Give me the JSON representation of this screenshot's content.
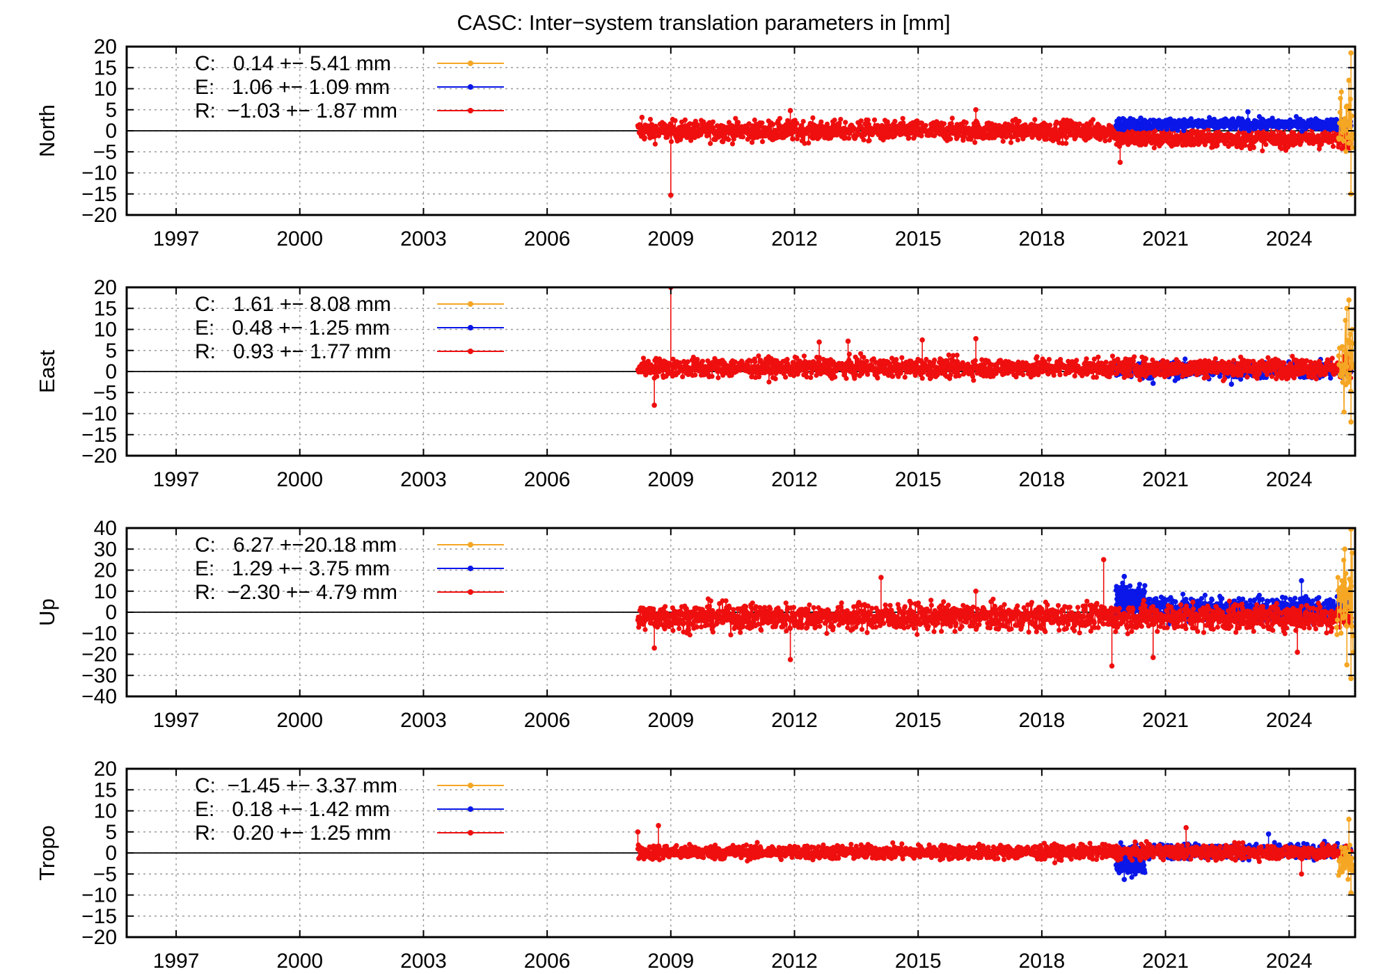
{
  "title": "CASC: Inter−system translation parameters in [mm]",
  "colors": {
    "C": "#f5a623",
    "E": "#0a17e8",
    "R": "#ef0f0f"
  },
  "chart_data": [
    {
      "type": "scatter",
      "panel": "north",
      "ylabel": "North",
      "xlim": [
        1995.8,
        2025.6
      ],
      "ylim": [
        -20,
        20
      ],
      "yticks": [
        "20",
        "15",
        "10",
        "5",
        "0",
        "−5",
        "−10",
        "−15",
        "−20"
      ],
      "xticks": [
        "1997",
        "2000",
        "2003",
        "2006",
        "2009",
        "2012",
        "2015",
        "2018",
        "2021",
        "2024"
      ],
      "legend_position": "top-left",
      "legend": [
        {
          "sys": "C",
          "text": "C:   0.14 +− 5.41 mm"
        },
        {
          "sys": "E",
          "text": "E:   1.06 +− 1.09 mm"
        },
        {
          "sys": "R",
          "text": "R:  −1.03 +− 1.87 mm"
        }
      ],
      "series": [
        {
          "sys": "R",
          "name": "R",
          "segments": [
            {
              "x": [
                2008.2,
                2019.8
              ],
              "mean": 0.0,
              "spread": 1.7
            },
            {
              "x": [
                2019.8,
                2025.5
              ],
              "mean": -1.8,
              "spread": 1.6
            }
          ],
          "spikes": [
            [
              2009.0,
              -15.3
            ],
            [
              2011.9,
              4.8
            ],
            [
              2016.4,
              5.0
            ],
            [
              2019.9,
              -7.5
            ],
            [
              2008.3,
              3.2
            ]
          ]
        },
        {
          "sys": "E",
          "name": "E",
          "segments": [
            {
              "x": [
                2019.8,
                2025.5
              ],
              "mean": 1.6,
              "spread": 0.9
            }
          ],
          "spikes": [
            [
              2023.0,
              4.5
            ],
            [
              2020.4,
              3.0
            ]
          ]
        },
        {
          "sys": "C",
          "name": "C",
          "segments": [
            {
              "x": [
                2025.2,
                2025.55
              ],
              "mean": 1.5,
              "spread": 6.0
            }
          ],
          "spikes": [
            [
              2025.5,
              18.5
            ],
            [
              2025.45,
              12.0
            ],
            [
              2025.5,
              -15.0
            ]
          ]
        }
      ]
    },
    {
      "type": "scatter",
      "panel": "east",
      "ylabel": "East",
      "xlim": [
        1995.8,
        2025.6
      ],
      "ylim": [
        -20,
        20
      ],
      "yticks": [
        "20",
        "15",
        "10",
        "5",
        "0",
        "−5",
        "−10",
        "−15",
        "−20"
      ],
      "xticks": [
        "1997",
        "2000",
        "2003",
        "2006",
        "2009",
        "2012",
        "2015",
        "2018",
        "2021",
        "2024"
      ],
      "legend_position": "top-left",
      "legend": [
        {
          "sys": "C",
          "text": "C:   1.61 +− 8.08 mm"
        },
        {
          "sys": "E",
          "text": "E:   0.48 +− 1.25 mm"
        },
        {
          "sys": "R",
          "text": "R:   0.93 +− 1.77 mm"
        }
      ],
      "series": [
        {
          "sys": "E",
          "name": "E",
          "segments": [
            {
              "x": [
                2019.8,
                2025.5
              ],
              "mean": 0.3,
              "spread": 1.4
            }
          ],
          "spikes": [
            [
              2020.7,
              -2.8
            ],
            [
              2022.6,
              -3.0
            ]
          ]
        },
        {
          "sys": "R",
          "name": "R",
          "segments": [
            {
              "x": [
                2008.2,
                2025.5
              ],
              "mean": 0.9,
              "spread": 1.6
            }
          ],
          "spikes": [
            [
              2009.0,
              20.0
            ],
            [
              2016.4,
              7.8
            ],
            [
              2012.6,
              7.0
            ],
            [
              2013.3,
              7.2
            ],
            [
              2008.6,
              -8.0
            ],
            [
              2015.1,
              7.5
            ]
          ]
        },
        {
          "sys": "C",
          "name": "C",
          "segments": [
            {
              "x": [
                2025.2,
                2025.55
              ],
              "mean": 2.0,
              "spread": 7.0
            }
          ],
          "spikes": [
            [
              2025.45,
              17.0
            ],
            [
              2025.5,
              -12.0
            ],
            [
              2025.4,
              15.0
            ]
          ]
        }
      ]
    },
    {
      "type": "scatter",
      "panel": "up",
      "ylabel": "Up",
      "xlim": [
        1995.8,
        2025.6
      ],
      "ylim": [
        -40,
        40
      ],
      "yticks": [
        "40",
        "30",
        "20",
        "10",
        "0",
        "−10",
        "−20",
        "−30",
        "−40"
      ],
      "xticks": [
        "1997",
        "2000",
        "2003",
        "2006",
        "2009",
        "2012",
        "2015",
        "2018",
        "2021",
        "2024"
      ],
      "legend_position": "top-left",
      "legend": [
        {
          "sys": "C",
          "text": "C:   6.27 +−20.18 mm"
        },
        {
          "sys": "E",
          "text": "E:   1.29 +− 3.75 mm"
        },
        {
          "sys": "R",
          "text": "R:  −2.30 +− 4.79 mm"
        }
      ],
      "series": [
        {
          "sys": "E",
          "name": "E",
          "segments": [
            {
              "x": [
                2019.8,
                2025.5
              ],
              "mean": 1.5,
              "spread": 4.0
            },
            {
              "x": [
                2019.8,
                2020.5
              ],
              "mean": 9.0,
              "spread": 3.0
            }
          ],
          "spikes": [
            [
              2020.0,
              17.0
            ],
            [
              2024.3,
              15.0
            ]
          ]
        },
        {
          "sys": "R",
          "name": "R",
          "segments": [
            {
              "x": [
                2008.2,
                2025.5
              ],
              "mean": -2.3,
              "spread": 4.5
            }
          ],
          "spikes": [
            [
              2011.9,
              -22.5
            ],
            [
              2014.1,
              16.5
            ],
            [
              2019.5,
              25.0
            ],
            [
              2019.7,
              -25.5
            ],
            [
              2020.7,
              -21.5
            ],
            [
              2016.4,
              10.0
            ],
            [
              2008.6,
              -17.0
            ],
            [
              2024.2,
              -19.0
            ]
          ]
        },
        {
          "sys": "C",
          "name": "C",
          "segments": [
            {
              "x": [
                2025.15,
                2025.55
              ],
              "mean": 6.0,
              "spread": 14.0
            }
          ],
          "spikes": [
            [
              2025.5,
              39.5
            ],
            [
              2025.5,
              -31.5
            ],
            [
              2025.35,
              30.0
            ],
            [
              2025.4,
              -25.0
            ]
          ]
        }
      ]
    },
    {
      "type": "scatter",
      "panel": "tropo",
      "ylabel": "Tropo",
      "xlim": [
        1995.8,
        2025.6
      ],
      "ylim": [
        -20,
        20
      ],
      "yticks": [
        "20",
        "15",
        "10",
        "5",
        "0",
        "−5",
        "−10",
        "−15",
        "−20"
      ],
      "xticks": [
        "1997",
        "2000",
        "2003",
        "2006",
        "2009",
        "2012",
        "2015",
        "2018",
        "2021",
        "2024"
      ],
      "legend_position": "top-left",
      "legend": [
        {
          "sys": "C",
          "text": "C:  −1.45 +− 3.37 mm"
        },
        {
          "sys": "E",
          "text": "E:   0.18 +− 1.42 mm"
        },
        {
          "sys": "R",
          "text": "R:   0.20 +− 1.25 mm"
        }
      ],
      "series": [
        {
          "sys": "E",
          "name": "E",
          "segments": [
            {
              "x": [
                2019.8,
                2025.5
              ],
              "mean": 0.4,
              "spread": 1.2
            },
            {
              "x": [
                2019.8,
                2020.5
              ],
              "mean": -3.5,
              "spread": 1.2
            }
          ],
          "spikes": [
            [
              2020.0,
              -6.3
            ],
            [
              2023.5,
              4.5
            ]
          ]
        },
        {
          "sys": "R",
          "name": "R",
          "segments": [
            {
              "x": [
                2008.2,
                2025.5
              ],
              "mean": 0.2,
              "spread": 1.2
            }
          ],
          "spikes": [
            [
              2008.7,
              6.5
            ],
            [
              2021.5,
              6.0
            ],
            [
              2024.3,
              -5.0
            ],
            [
              2008.2,
              5.0
            ]
          ]
        },
        {
          "sys": "C",
          "name": "C",
          "segments": [
            {
              "x": [
                2025.2,
                2025.55
              ],
              "mean": -2.0,
              "spread": 3.5
            }
          ],
          "spikes": [
            [
              2025.45,
              8.0
            ],
            [
              2025.5,
              -9.5
            ]
          ]
        }
      ]
    }
  ]
}
